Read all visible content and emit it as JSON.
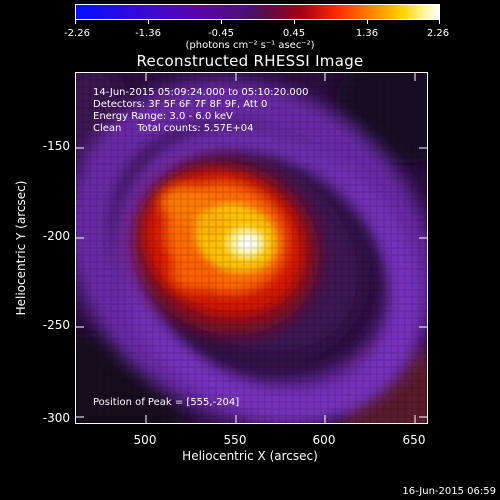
{
  "colorbar": {
    "ticks": [
      "-2.26",
      "-1.36",
      "-0.45",
      "0.45",
      "1.36",
      "2.26"
    ],
    "unit": "(photons cm⁻² s⁻¹ asec⁻²)"
  },
  "title": "Reconstructed RHESSI Image",
  "info": {
    "time_range": "14-Jun-2015 05:09:24.000 to 05:10:20.000",
    "detectors": "Detectors: 3F 5F 6F 7F 8F 9F, Att 0",
    "energy": "Energy Range: 3.0 - 6.0 keV",
    "clean": "Clean     Total counts: 5.57E+04"
  },
  "peak": "Position of Peak = [555,-204]",
  "axes": {
    "xlabel": "Heliocentric X (arcsec)",
    "ylabel": "Heliocentric Y (arcsec)",
    "xticks": [
      "500",
      "550",
      "600",
      "650"
    ],
    "yticks": [
      "-150",
      "-200",
      "-250",
      "-300"
    ]
  },
  "timestamp": "16-Jun-2015 06:59"
}
